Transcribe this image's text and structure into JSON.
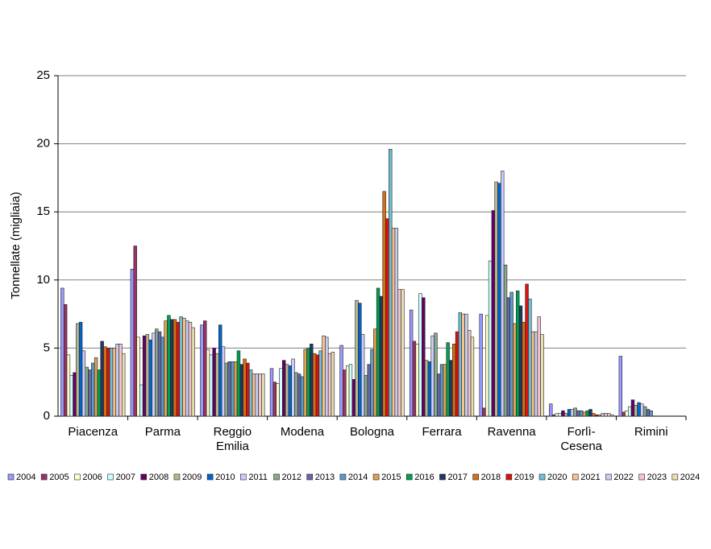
{
  "chart_data": {
    "type": "bar",
    "y_label": "Tonnellate (migliaia)",
    "categories": [
      "Piacenza",
      "Parma",
      "Reggio Emilia",
      "Modena",
      "Bologna",
      "Ferrara",
      "Ravenna",
      "Forlì-Cesena",
      "Rimini"
    ],
    "ylim": [
      0,
      25
    ],
    "yticks": [
      0,
      5,
      10,
      15,
      20,
      25
    ],
    "grid": true,
    "legend": "bottom",
    "series": [
      {
        "name": "2004",
        "color": "#9999ff",
        "values": [
          9.4,
          10.8,
          6.7,
          3.5,
          5.2,
          7.8,
          7.5,
          0.9,
          4.4
        ]
      },
      {
        "name": "2005",
        "color": "#993366",
        "values": [
          8.2,
          12.5,
          7.0,
          2.5,
          3.4,
          5.5,
          0.6,
          0.1,
          0.3
        ]
      },
      {
        "name": "2006",
        "color": "#ffffcc",
        "values": [
          4.5,
          5.8,
          4.9,
          2.4,
          3.7,
          5.3,
          7.4,
          0.2,
          0.4
        ]
      },
      {
        "name": "2007",
        "color": "#ccffff",
        "values": [
          3.0,
          2.3,
          4.5,
          3.5,
          3.8,
          9.0,
          11.4,
          0.2,
          0.7
        ]
      },
      {
        "name": "2008",
        "color": "#660066",
        "values": [
          3.2,
          5.9,
          5.0,
          4.1,
          2.7,
          8.7,
          15.1,
          0.4,
          1.2
        ]
      },
      {
        "name": "2009",
        "color": "#b8b890",
        "values": [
          6.8,
          6.0,
          4.6,
          3.8,
          8.5,
          4.1,
          17.2,
          0.2,
          0.8
        ]
      },
      {
        "name": "2010",
        "color": "#0066cc",
        "values": [
          6.9,
          5.6,
          6.7,
          3.7,
          8.3,
          4.0,
          17.1,
          0.5,
          1.0
        ]
      },
      {
        "name": "2011",
        "color": "#ccccff",
        "values": [
          4.8,
          6.1,
          5.1,
          4.2,
          6.0,
          5.9,
          18.0,
          0.5,
          0.9
        ]
      },
      {
        "name": "2012",
        "color": "#88aa88",
        "values": [
          3.6,
          6.4,
          3.9,
          3.2,
          3.0,
          6.1,
          11.1,
          0.6,
          0.7
        ]
      },
      {
        "name": "2013",
        "color": "#6666aa",
        "values": [
          3.4,
          6.2,
          4.0,
          3.1,
          3.8,
          3.1,
          8.7,
          0.4,
          0.5
        ]
      },
      {
        "name": "2014",
        "color": "#5b9bc8",
        "values": [
          3.9,
          5.8,
          4.0,
          2.9,
          4.9,
          3.8,
          9.1,
          0.4,
          0.4
        ]
      },
      {
        "name": "2015",
        "color": "#e0a050",
        "values": [
          4.3,
          7.0,
          4.0,
          4.9,
          6.4,
          3.8,
          6.8,
          0.3,
          0
        ]
      },
      {
        "name": "2016",
        "color": "#00a050",
        "values": [
          3.4,
          7.4,
          4.8,
          5.0,
          9.4,
          5.4,
          9.2,
          0.4,
          0
        ]
      },
      {
        "name": "2017",
        "color": "#1f3864",
        "values": [
          5.5,
          7.1,
          3.8,
          5.3,
          8.8,
          4.1,
          8.1,
          0.5,
          0
        ]
      },
      {
        "name": "2018",
        "color": "#d87010",
        "values": [
          5.1,
          7.1,
          4.2,
          4.6,
          16.5,
          5.3,
          6.9,
          0.2,
          0
        ]
      },
      {
        "name": "2019",
        "color": "#dd1111",
        "values": [
          5.0,
          6.9,
          3.9,
          4.5,
          14.5,
          6.2,
          9.7,
          0.1,
          0
        ]
      },
      {
        "name": "2020",
        "color": "#70c0d0",
        "values": [
          5.0,
          7.3,
          3.4,
          4.8,
          19.6,
          7.6,
          8.6,
          0.1,
          0
        ]
      },
      {
        "name": "2021",
        "color": "#fac090",
        "values": [
          5.0,
          7.2,
          3.1,
          5.9,
          13.8,
          7.5,
          6.2,
          0.2,
          0
        ]
      },
      {
        "name": "2022",
        "color": "#c5d0ee",
        "values": [
          5.3,
          7.0,
          3.1,
          5.8,
          13.8,
          7.5,
          6.2,
          0.2,
          0
        ]
      },
      {
        "name": "2023",
        "color": "#f2c4d0",
        "values": [
          5.3,
          6.9,
          3.1,
          4.6,
          9.3,
          6.3,
          7.3,
          0.2,
          0
        ]
      },
      {
        "name": "2024",
        "color": "#e8e0b0",
        "values": [
          4.6,
          6.5,
          3.1,
          4.7,
          9.3,
          5.8,
          6.0,
          0.1,
          0
        ]
      }
    ]
  }
}
